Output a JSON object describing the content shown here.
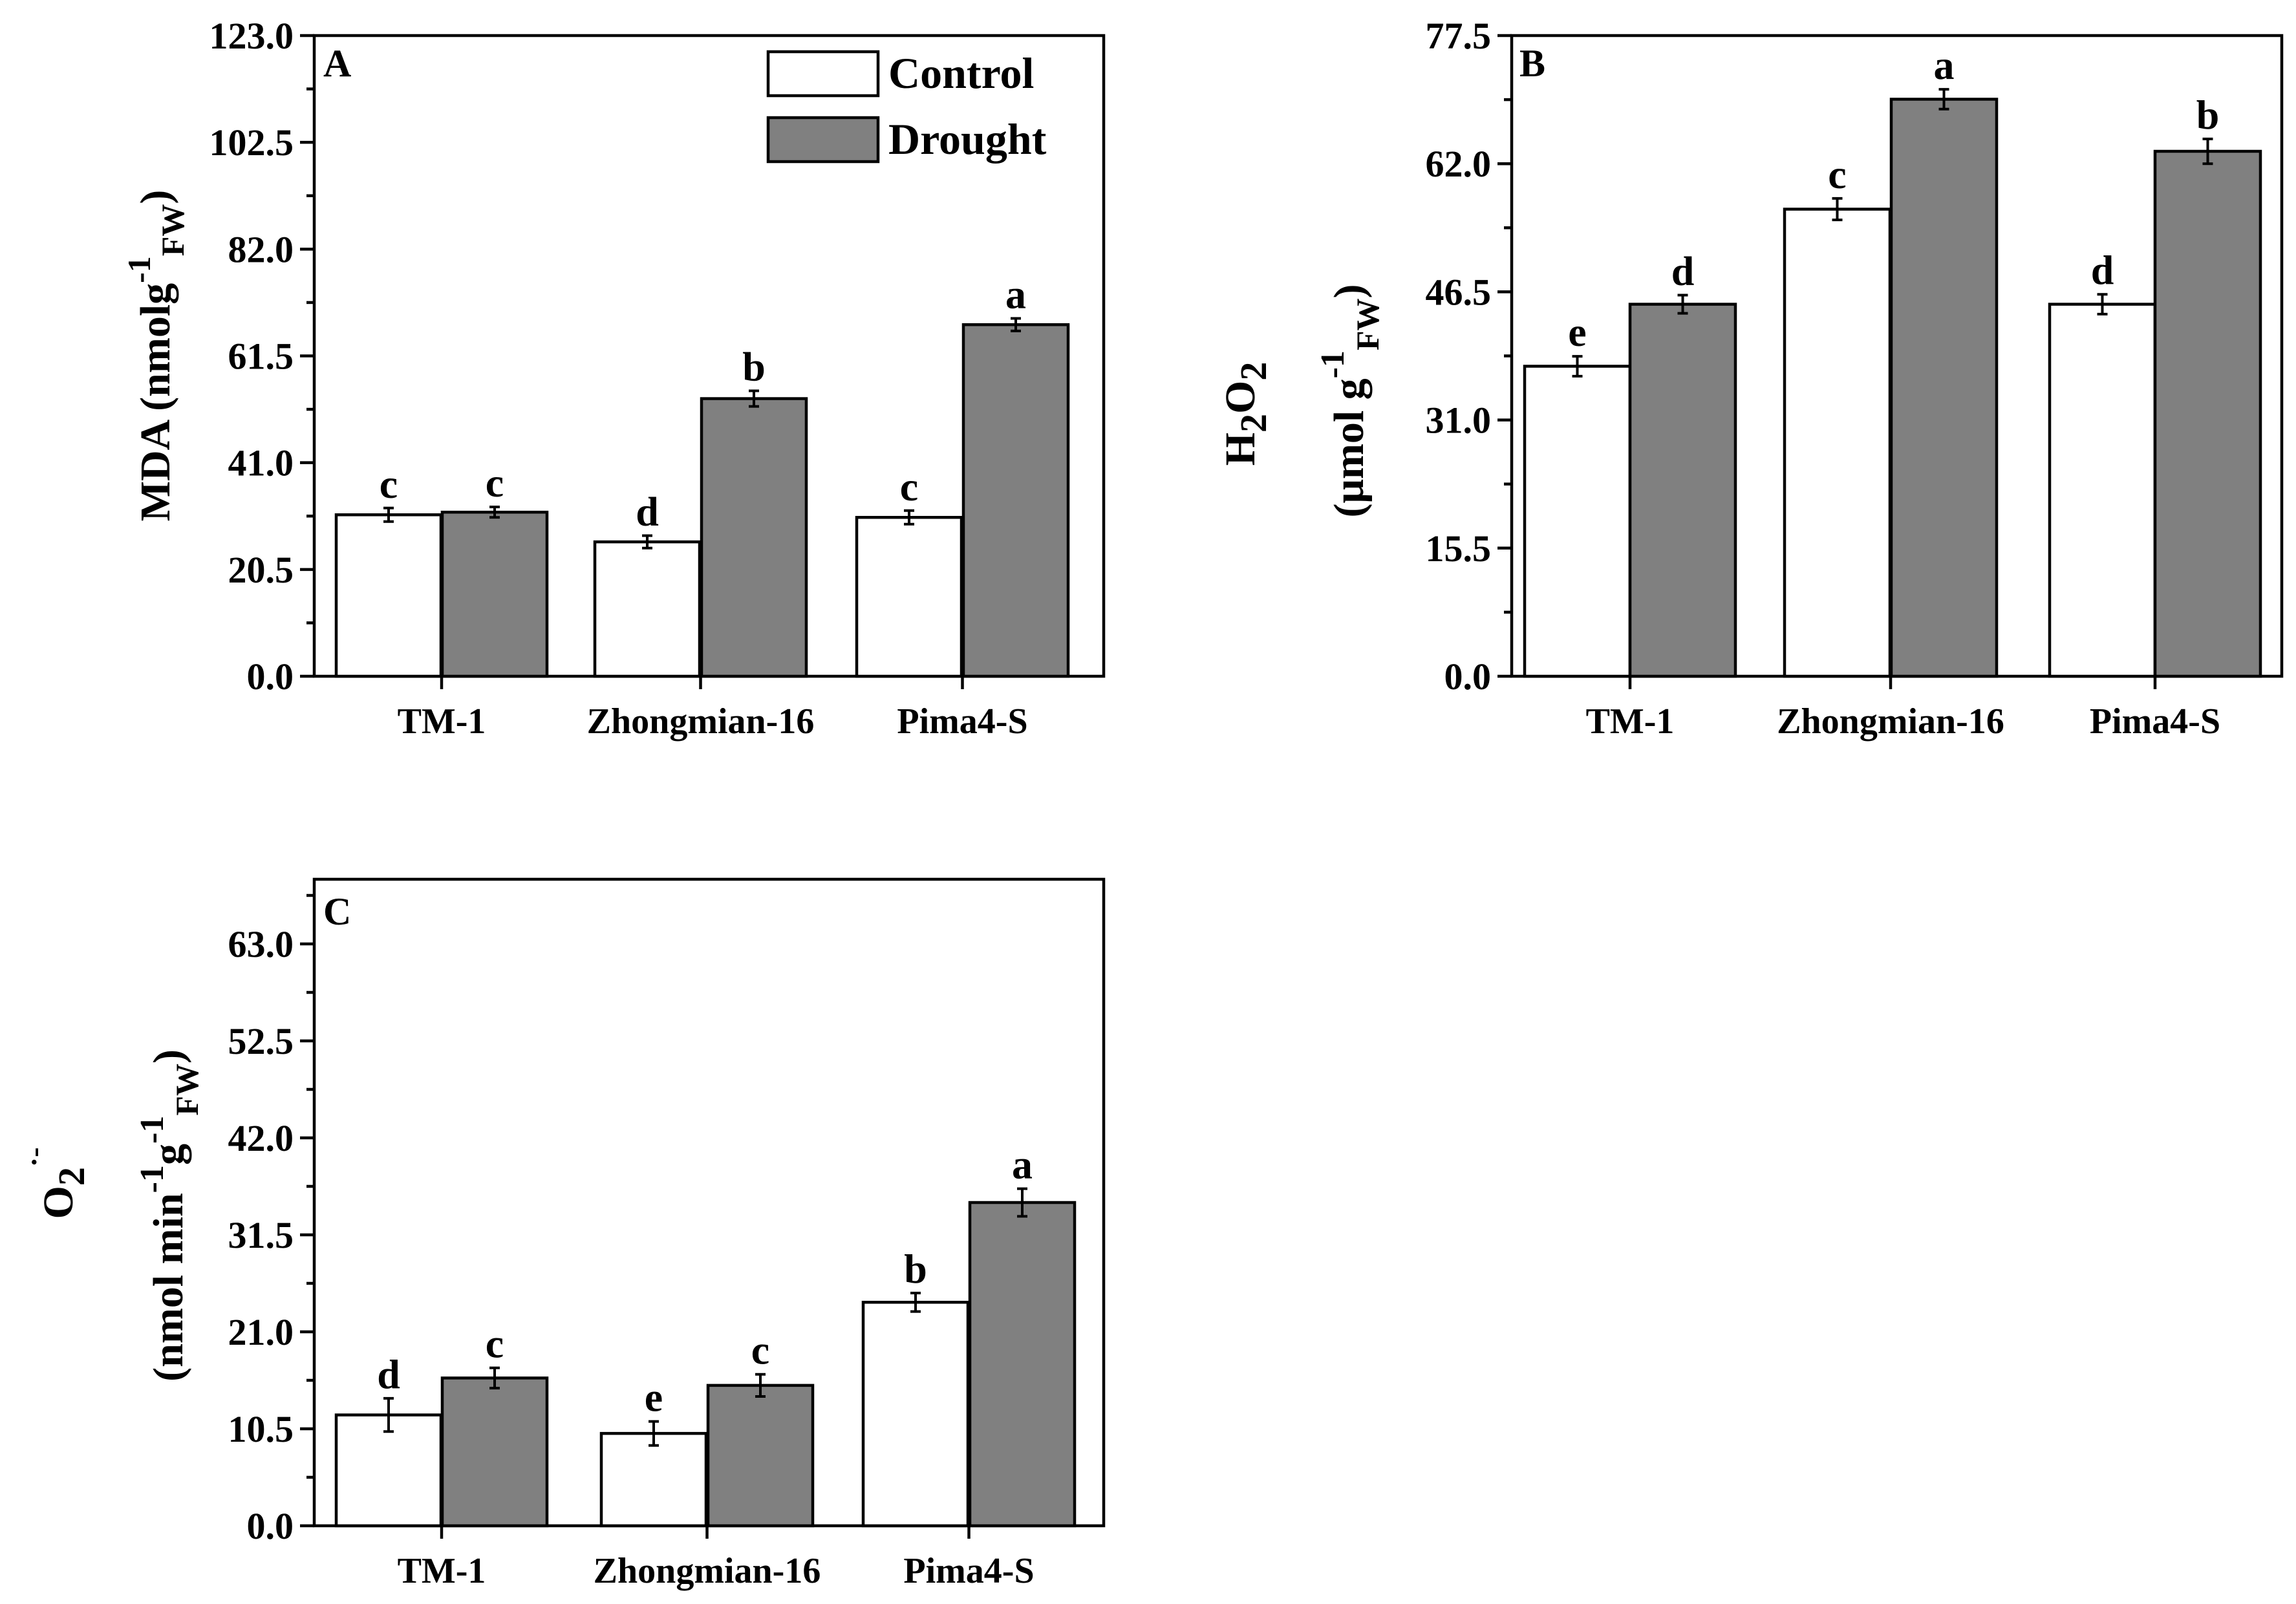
{
  "colors": {
    "control": "#ffffff",
    "drought": "#808080",
    "axis": "#000000"
  },
  "legend": {
    "control_label": "Control",
    "drought_label": "Drought"
  },
  "chart_data": [
    {
      "id": "A",
      "type": "bar",
      "panel_label": "A",
      "categories": [
        "TM-1",
        "Zhongmian-16",
        "Pima4-S"
      ],
      "ylim": [
        0,
        123
      ],
      "yticks": [
        "0.0",
        "20.5",
        "41.0",
        "61.5",
        "82.0",
        "102.5",
        "123.0"
      ],
      "ylabel": {
        "main": "MDA (nmolg",
        "sup": "-1",
        "sub": "FW",
        "close": ")"
      },
      "legend": true,
      "series": [
        {
          "name": "Control",
          "values": [
            31.0,
            25.8,
            30.5
          ],
          "errors": [
            1.3,
            1.2,
            1.3
          ],
          "letters": [
            "c",
            "d",
            "c"
          ]
        },
        {
          "name": "Drought",
          "values": [
            31.5,
            53.3,
            67.5
          ],
          "errors": [
            1.0,
            1.5,
            1.2
          ],
          "letters": [
            "c",
            "b",
            "a"
          ]
        }
      ]
    },
    {
      "id": "B",
      "type": "bar",
      "panel_label": "B",
      "categories": [
        "TM-1",
        "Zhongmian-16",
        "Pima4-S"
      ],
      "ylim": [
        0,
        77.5
      ],
      "yticks": [
        "0.0",
        "15.5",
        "31.0",
        "46.5",
        "62.0",
        "77.5"
      ],
      "ylabel": {
        "line1_main": "H",
        "line1_sub1": "2",
        "line1_mid": "O",
        "line1_sub2": "2",
        "line2_main": "(μmol g",
        "line2_sup": "-1",
        "line2_sub": "FW",
        "line2_close": ")"
      },
      "legend": false,
      "series": [
        {
          "name": "Control",
          "values": [
            37.5,
            56.5,
            45.0
          ],
          "errors": [
            1.2,
            1.3,
            1.2
          ],
          "letters": [
            "e",
            "c",
            "d"
          ]
        },
        {
          "name": "Drought",
          "values": [
            45.0,
            69.8,
            63.5
          ],
          "errors": [
            1.1,
            1.2,
            1.5
          ],
          "letters": [
            "d",
            "a",
            "b"
          ]
        }
      ]
    },
    {
      "id": "C",
      "type": "bar",
      "panel_label": "C",
      "categories": [
        "TM-1",
        "Zhongmian-16",
        "Pima4-S"
      ],
      "ylim": [
        0,
        70
      ],
      "yticks": [
        "0.0",
        "10.5",
        "21.0",
        "31.5",
        "42.0",
        "52.5",
        "63.0"
      ],
      "ylabel": {
        "line1_main": "O",
        "line1_sub": "2",
        "line1_sup": "·-",
        "line2_main": "(nmol min",
        "line2_sup1": "-1",
        "line2_mid": "g",
        "line2_sup2": "-1",
        "line2_sub": "FW",
        "line2_close": ")"
      },
      "legend": false,
      "series": [
        {
          "name": "Control",
          "values": [
            12.0,
            10.0,
            24.2
          ],
          "errors": [
            1.8,
            1.3,
            1.0
          ],
          "letters": [
            "d",
            "e",
            "b"
          ]
        },
        {
          "name": "Drought",
          "values": [
            16.0,
            15.2,
            35.0
          ],
          "errors": [
            1.1,
            1.2,
            1.5
          ],
          "letters": [
            "c",
            "c",
            "a"
          ]
        }
      ]
    }
  ]
}
